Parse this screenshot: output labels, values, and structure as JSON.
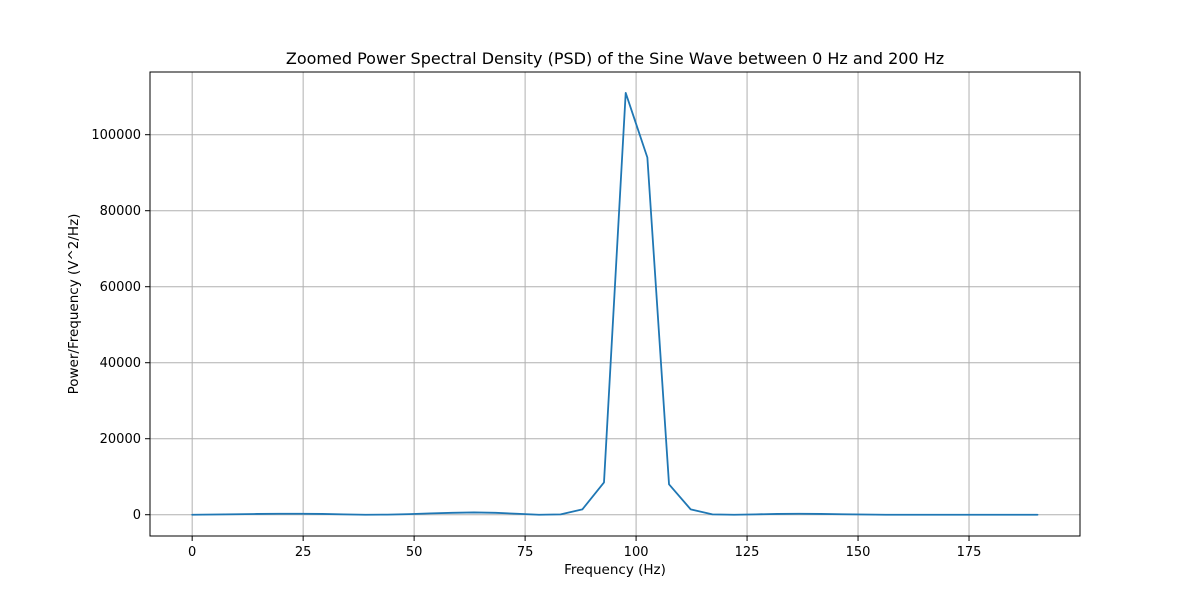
{
  "chart_data": {
    "type": "line",
    "title": "Zoomed Power Spectral Density (PSD) of the Sine Wave between 0 Hz and 200 Hz",
    "xlabel": "Frequency (Hz)",
    "ylabel": "Power/Frequency (V^2/Hz)",
    "xlim": [
      -9.5,
      200
    ],
    "ylim": [
      -5600,
      116500
    ],
    "xticks": [
      0,
      25,
      50,
      75,
      100,
      125,
      150,
      175
    ],
    "xtick_labels": [
      "0",
      "25",
      "50",
      "75",
      "100",
      "125",
      "150",
      "175"
    ],
    "yticks": [
      0,
      20000,
      40000,
      60000,
      80000,
      100000
    ],
    "ytick_labels": [
      "0",
      "20000",
      "40000",
      "60000",
      "80000",
      "100000"
    ],
    "grid": true,
    "line_color": "#1f77b4",
    "grid_color": "#b0b0b0",
    "series": [
      {
        "x": [
          0,
          4.88,
          9.77,
          14.65,
          19.53,
          24.41,
          29.3,
          34.18,
          39.06,
          43.95,
          48.83,
          53.71,
          58.59,
          63.48,
          68.36,
          73.24,
          78.13,
          83.01,
          87.89,
          92.77,
          97.66,
          102.54,
          107.42,
          112.3,
          117.19,
          122.07,
          126.95,
          131.84,
          136.72,
          141.6,
          146.48,
          151.37,
          156.25,
          161.13,
          166.02,
          170.9,
          175.78,
          180.66,
          185.55,
          190.43
        ],
        "y": [
          0,
          50,
          120,
          200,
          250,
          260,
          200,
          100,
          0,
          30,
          150,
          350,
          500,
          600,
          500,
          250,
          0,
          100,
          1400,
          8500,
          111000,
          94000,
          8000,
          1400,
          100,
          0,
          100,
          200,
          250,
          200,
          120,
          50,
          0,
          0,
          0,
          0,
          0,
          0,
          0,
          0
        ]
      }
    ]
  }
}
